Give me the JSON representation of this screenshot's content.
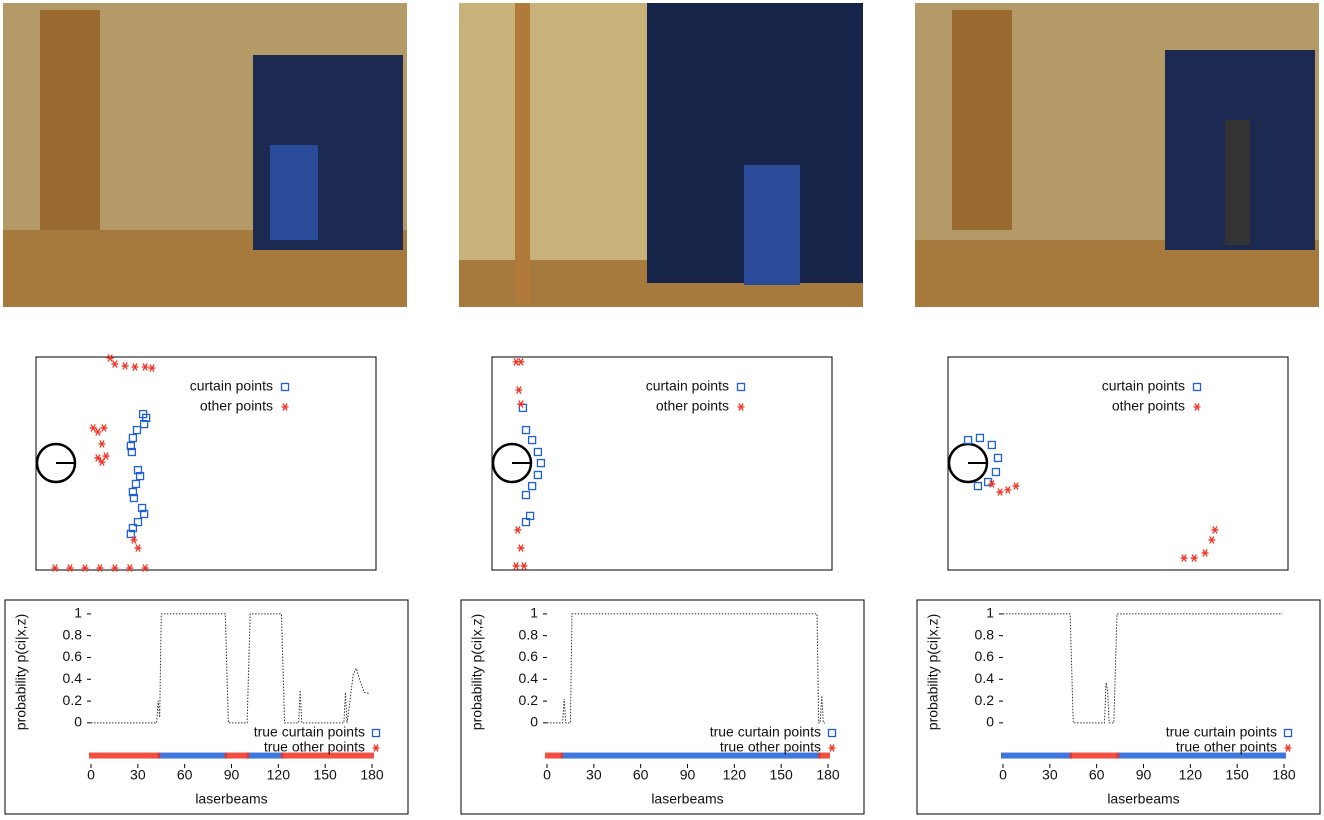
{
  "chart_data": [
    {
      "type": "scatter",
      "xlim": [
        0,
        100
      ],
      "ylim": [
        0,
        100
      ],
      "series": [
        {
          "name": "curtain points",
          "color": "#1f5fd6",
          "marker": "square",
          "x": [
            31.5,
            32.4,
            31.8,
            29.7,
            28.5,
            27.9,
            28.2,
            30.0,
            30.6,
            29.4,
            28.5,
            28.8,
            31.2,
            31.8,
            30.0,
            28.5,
            27.9
          ],
          "y": [
            73.2,
            71.4,
            68.5,
            65.7,
            62.0,
            58.2,
            55.4,
            46.9,
            44.1,
            40.4,
            36.6,
            33.8,
            29.1,
            26.3,
            22.5,
            19.7,
            16.9
          ]
        },
        {
          "name": "other points",
          "color": "#f03020",
          "marker": "asterisk",
          "x": [
            21.8,
            23.2,
            26.2,
            29.1,
            32.1,
            34.1,
            16.8,
            18.2,
            20.0,
            19.4,
            18.2,
            19.4,
            20.6,
            30.0,
            28.8,
            5.6,
            10.0,
            14.4,
            18.8,
            23.2,
            27.6,
            32.1
          ],
          "y": [
            99.5,
            96.7,
            95.8,
            95.3,
            95.3,
            94.8,
            66.7,
            64.8,
            66.7,
            59.2,
            52.6,
            50.7,
            53.5,
            10.3,
            14.1,
            0.9,
            0.9,
            0.9,
            0.9,
            0.9,
            0.9,
            0.9
          ]
        }
      ]
    },
    {
      "type": "scatter",
      "xlim": [
        0,
        100
      ],
      "ylim": [
        0,
        100
      ],
      "series": [
        {
          "name": "curtain points",
          "color": "#1f5fd6",
          "marker": "square",
          "x": [
            9.1,
            10.0,
            11.8,
            13.5,
            14.4,
            13.5,
            11.8,
            10.0,
            11.2,
            10.0
          ],
          "y": [
            76.1,
            65.7,
            61.0,
            55.4,
            50.2,
            44.6,
            39.4,
            35.2,
            25.4,
            22.5
          ]
        },
        {
          "name": "other points",
          "color": "#f03020",
          "marker": "asterisk",
          "x": [
            7.1,
            8.5,
            7.9,
            8.5,
            7.6,
            8.5,
            7.1,
            9.4
          ],
          "y": [
            97.7,
            97.7,
            84.5,
            77.9,
            18.8,
            10.3,
            1.9,
            1.9
          ]
        }
      ]
    },
    {
      "type": "scatter",
      "xlim": [
        0,
        100
      ],
      "ylim": [
        0,
        100
      ],
      "series": [
        {
          "name": "curtain points",
          "color": "#1f5fd6",
          "marker": "square",
          "x": [
            5.9,
            9.4,
            12.9,
            14.7,
            14.1,
            11.8,
            8.8
          ],
          "y": [
            61.0,
            62.0,
            58.7,
            52.6,
            46.0,
            41.3,
            39.4
          ]
        },
        {
          "name": "other points",
          "color": "#f03020",
          "marker": "asterisk",
          "x": [
            12.9,
            15.3,
            17.6,
            20.0,
            69.4,
            72.4,
            75.6,
            77.6,
            78.5
          ],
          "y": [
            40.4,
            36.6,
            37.6,
            39.4,
            5.6,
            5.6,
            8.0,
            14.1,
            18.8
          ]
        }
      ]
    },
    {
      "type": "line",
      "xlabel": "laserbeams",
      "ylabel": "probability p(ci|x,z)",
      "xlim": [
        0,
        180
      ],
      "xticks": [
        0,
        30,
        60,
        90,
        120,
        150,
        180
      ],
      "ylim": [
        -0.35,
        1.1
      ],
      "yticks": [
        0,
        0.2,
        0.4,
        0.6,
        0.8,
        1
      ],
      "line": {
        "color": "#333333",
        "x": [
          0,
          42,
          43,
          44,
          45,
          46,
          86,
          87,
          88,
          100,
          101,
          102,
          122,
          123,
          124,
          133,
          134,
          135,
          136,
          162,
          163,
          164,
          165,
          168,
          170,
          172,
          175,
          178
        ],
        "y": [
          0,
          0,
          0.2,
          0.05,
          1,
          1,
          1,
          0.5,
          0,
          0,
          0.5,
          1,
          1,
          0.5,
          0,
          0,
          0.3,
          0,
          0,
          0,
          0.28,
          0,
          0.1,
          0.45,
          0.5,
          0.4,
          0.28,
          0.27
        ]
      },
      "truth": [
        {
          "name": "true curtain points",
          "color": "#1f5fd6",
          "marker": "square",
          "ranges": [
            [
              44,
              86
            ],
            [
              101,
              122
            ]
          ]
        },
        {
          "name": "true other points",
          "color": "#f03020",
          "marker": "asterisk",
          "ranges": [
            [
              0,
              43
            ],
            [
              87,
              100
            ],
            [
              123,
              180
            ]
          ]
        }
      ]
    },
    {
      "type": "line",
      "xlabel": "laserbeams",
      "ylabel": "probability p(ci|x,z)",
      "xlim": [
        0,
        180
      ],
      "xticks": [
        0,
        30,
        60,
        90,
        120,
        150,
        180
      ],
      "ylim": [
        -0.35,
        1.1
      ],
      "yticks": [
        0,
        0.2,
        0.4,
        0.6,
        0.8,
        1
      ],
      "line": {
        "color": "#333333",
        "x": [
          0,
          10,
          11,
          12,
          13,
          15,
          16,
          173,
          174,
          175,
          176,
          177,
          178
        ],
        "y": [
          0,
          0,
          0.22,
          0,
          0,
          0,
          1,
          1,
          0,
          0,
          0.25,
          0,
          0
        ]
      },
      "truth": [
        {
          "name": "true curtain points",
          "color": "#1f5fd6",
          "marker": "square",
          "ranges": [
            [
              10,
              174
            ]
          ]
        },
        {
          "name": "true other points",
          "color": "#f03020",
          "marker": "asterisk",
          "ranges": [
            [
              0,
              9
            ],
            [
              175,
              180
            ]
          ]
        }
      ]
    },
    {
      "type": "line",
      "xlabel": "laserbeams",
      "ylabel": "probability p(ci|x,z)",
      "xlim": [
        0,
        180
      ],
      "xticks": [
        0,
        30,
        60,
        90,
        120,
        150,
        180
      ],
      "ylim": [
        -0.35,
        1.1
      ],
      "yticks": [
        0,
        0.2,
        0.4,
        0.6,
        0.8,
        1
      ],
      "line": {
        "color": "#333333",
        "x": [
          0,
          43,
          44,
          45,
          65,
          66,
          67,
          68,
          70,
          71,
          72,
          73,
          179
        ],
        "y": [
          1,
          1,
          0.5,
          0,
          0,
          0.37,
          0.3,
          0,
          0,
          0,
          0.5,
          1,
          1
        ]
      },
      "truth": [
        {
          "name": "true curtain points",
          "color": "#1f5fd6",
          "marker": "square",
          "ranges": [
            [
              0,
              43
            ],
            [
              74,
              180
            ]
          ]
        },
        {
          "name": "true other points",
          "color": "#f03020",
          "marker": "asterisk",
          "ranges": [
            [
              44,
              73
            ]
          ]
        }
      ]
    }
  ]
}
